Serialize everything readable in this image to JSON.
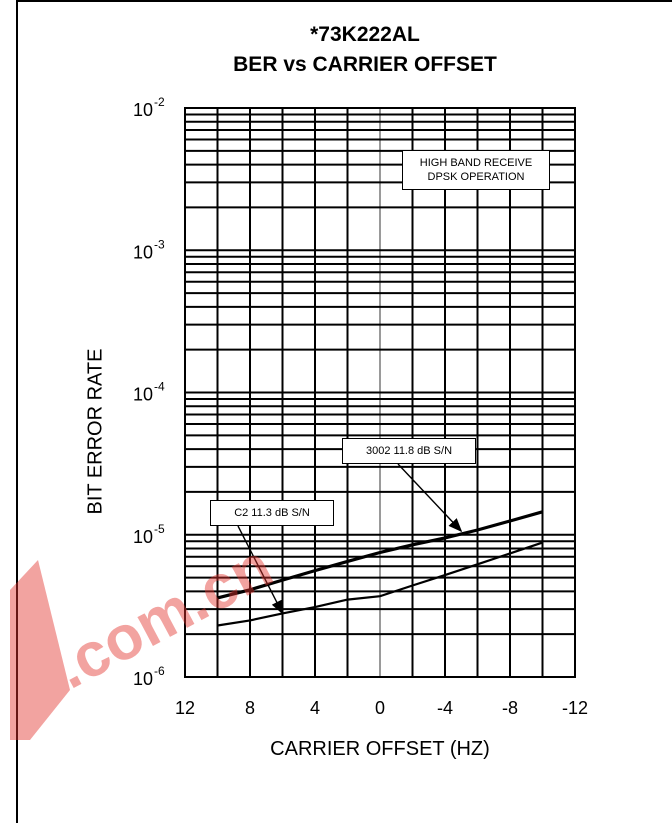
{
  "chart_data": {
    "type": "line",
    "title": "*73K222AL",
    "subtitle": "BER vs CARRIER OFFSET",
    "xlabel": "CARRIER OFFSET (HZ)",
    "ylabel": "BIT ERROR RATE",
    "x_ticks": [
      12,
      8,
      4,
      0,
      -4,
      -8,
      -12
    ],
    "xlim": [
      12,
      -12
    ],
    "yscale": "log",
    "ylim": [
      1e-06,
      0.01
    ],
    "y_ticks": [
      {
        "base": "10",
        "exp": "-2"
      },
      {
        "base": "10",
        "exp": "-3"
      },
      {
        "base": "10",
        "exp": "-4"
      },
      {
        "base": "10",
        "exp": "-5"
      },
      {
        "base": "10",
        "exp": "-6"
      }
    ],
    "grid": true,
    "annotation": {
      "line1": "HIGH BAND RECEIVE",
      "line2": "DPSK OPERATION"
    },
    "series": [
      {
        "name": "3002 11.8 dB S/N",
        "x": [
          10,
          8,
          6,
          4,
          2,
          0,
          -2,
          -4,
          -6,
          -8,
          -10
        ],
        "y": [
          2.3e-06,
          2.5e-06,
          2.8e-06,
          3.1e-06,
          3.5e-06,
          3.7e-06,
          4.4e-06,
          5.2e-06,
          6.2e-06,
          7.4e-06,
          8.8e-06
        ]
      },
      {
        "name": "C2 11.3 dB S/N",
        "x": [
          10,
          8,
          6,
          4,
          2,
          0,
          -2,
          -4,
          -6,
          -8,
          -10
        ],
        "y": [
          3.6e-06,
          4.1e-06,
          4.8e-06,
          5.6e-06,
          6.5e-06,
          7.5e-06,
          8.5e-06,
          9.5e-06,
          1.08e-05,
          1.25e-05,
          1.45e-05
        ]
      }
    ]
  },
  "watermark": {
    "text": ".com.cn"
  }
}
